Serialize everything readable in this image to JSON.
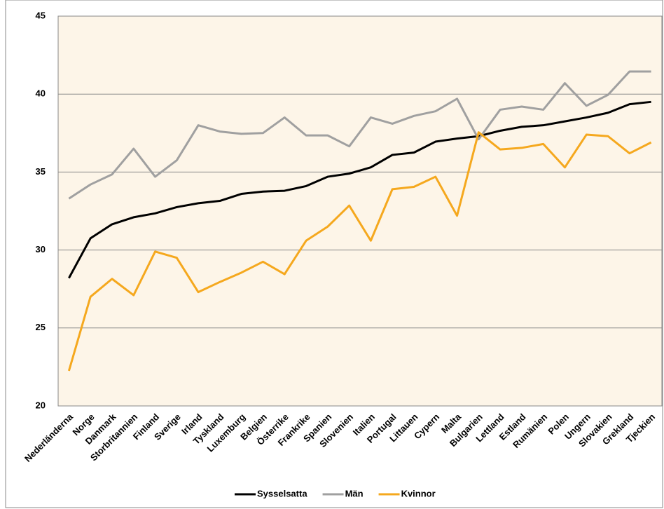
{
  "chart_data": {
    "type": "line",
    "categories": [
      "Nederländerna",
      "Norge",
      "Danmark",
      "Storbritannien",
      "Finland",
      "Sverige",
      "Irland",
      "Tyskland",
      "Luxemburg",
      "Belgien",
      "Österrike",
      "Frankrike",
      "Spanien",
      "Slovenien",
      "Italien",
      "Portugal",
      "Littauen",
      "Cypern",
      "Malta",
      "Bulgarien",
      "Lettland",
      "Estland",
      "Rumänien",
      "Polen",
      "Ungern",
      "Slovakien",
      "Grekland",
      "Tjeckien"
    ],
    "series": [
      {
        "name": "Sysselsatta",
        "color": "#000000",
        "values": [
          28.2,
          30.75,
          31.65,
          32.1,
          32.35,
          32.75,
          33.0,
          33.15,
          33.6,
          33.75,
          33.8,
          34.1,
          34.7,
          34.9,
          35.3,
          36.1,
          36.25,
          36.95,
          37.15,
          37.3,
          37.65,
          37.9,
          38.0,
          38.25,
          38.5,
          38.8,
          39.35,
          39.5
        ]
      },
      {
        "name": "Män",
        "color": "#a0a0a0",
        "values": [
          33.3,
          34.2,
          34.85,
          36.5,
          34.7,
          35.75,
          38.0,
          37.6,
          37.45,
          37.5,
          38.5,
          37.35,
          37.35,
          36.65,
          38.5,
          38.1,
          38.6,
          38.9,
          39.7,
          37.1,
          39.0,
          39.2,
          39.0,
          40.7,
          39.25,
          39.95,
          41.45,
          41.45
        ]
      },
      {
        "name": "Kvinnor",
        "color": "#f5a81e",
        "values": [
          22.25,
          27.0,
          28.15,
          27.1,
          29.9,
          29.5,
          27.3,
          27.95,
          28.55,
          29.25,
          28.45,
          30.6,
          31.5,
          32.85,
          30.6,
          33.9,
          34.05,
          34.7,
          32.2,
          37.55,
          36.45,
          36.55,
          36.8,
          35.3,
          37.4,
          37.3,
          36.2,
          36.9
        ]
      }
    ],
    "ylim": [
      20,
      45
    ],
    "yticks": [
      20,
      25,
      30,
      35,
      40,
      45
    ],
    "grid": true,
    "legend": "bottom"
  }
}
